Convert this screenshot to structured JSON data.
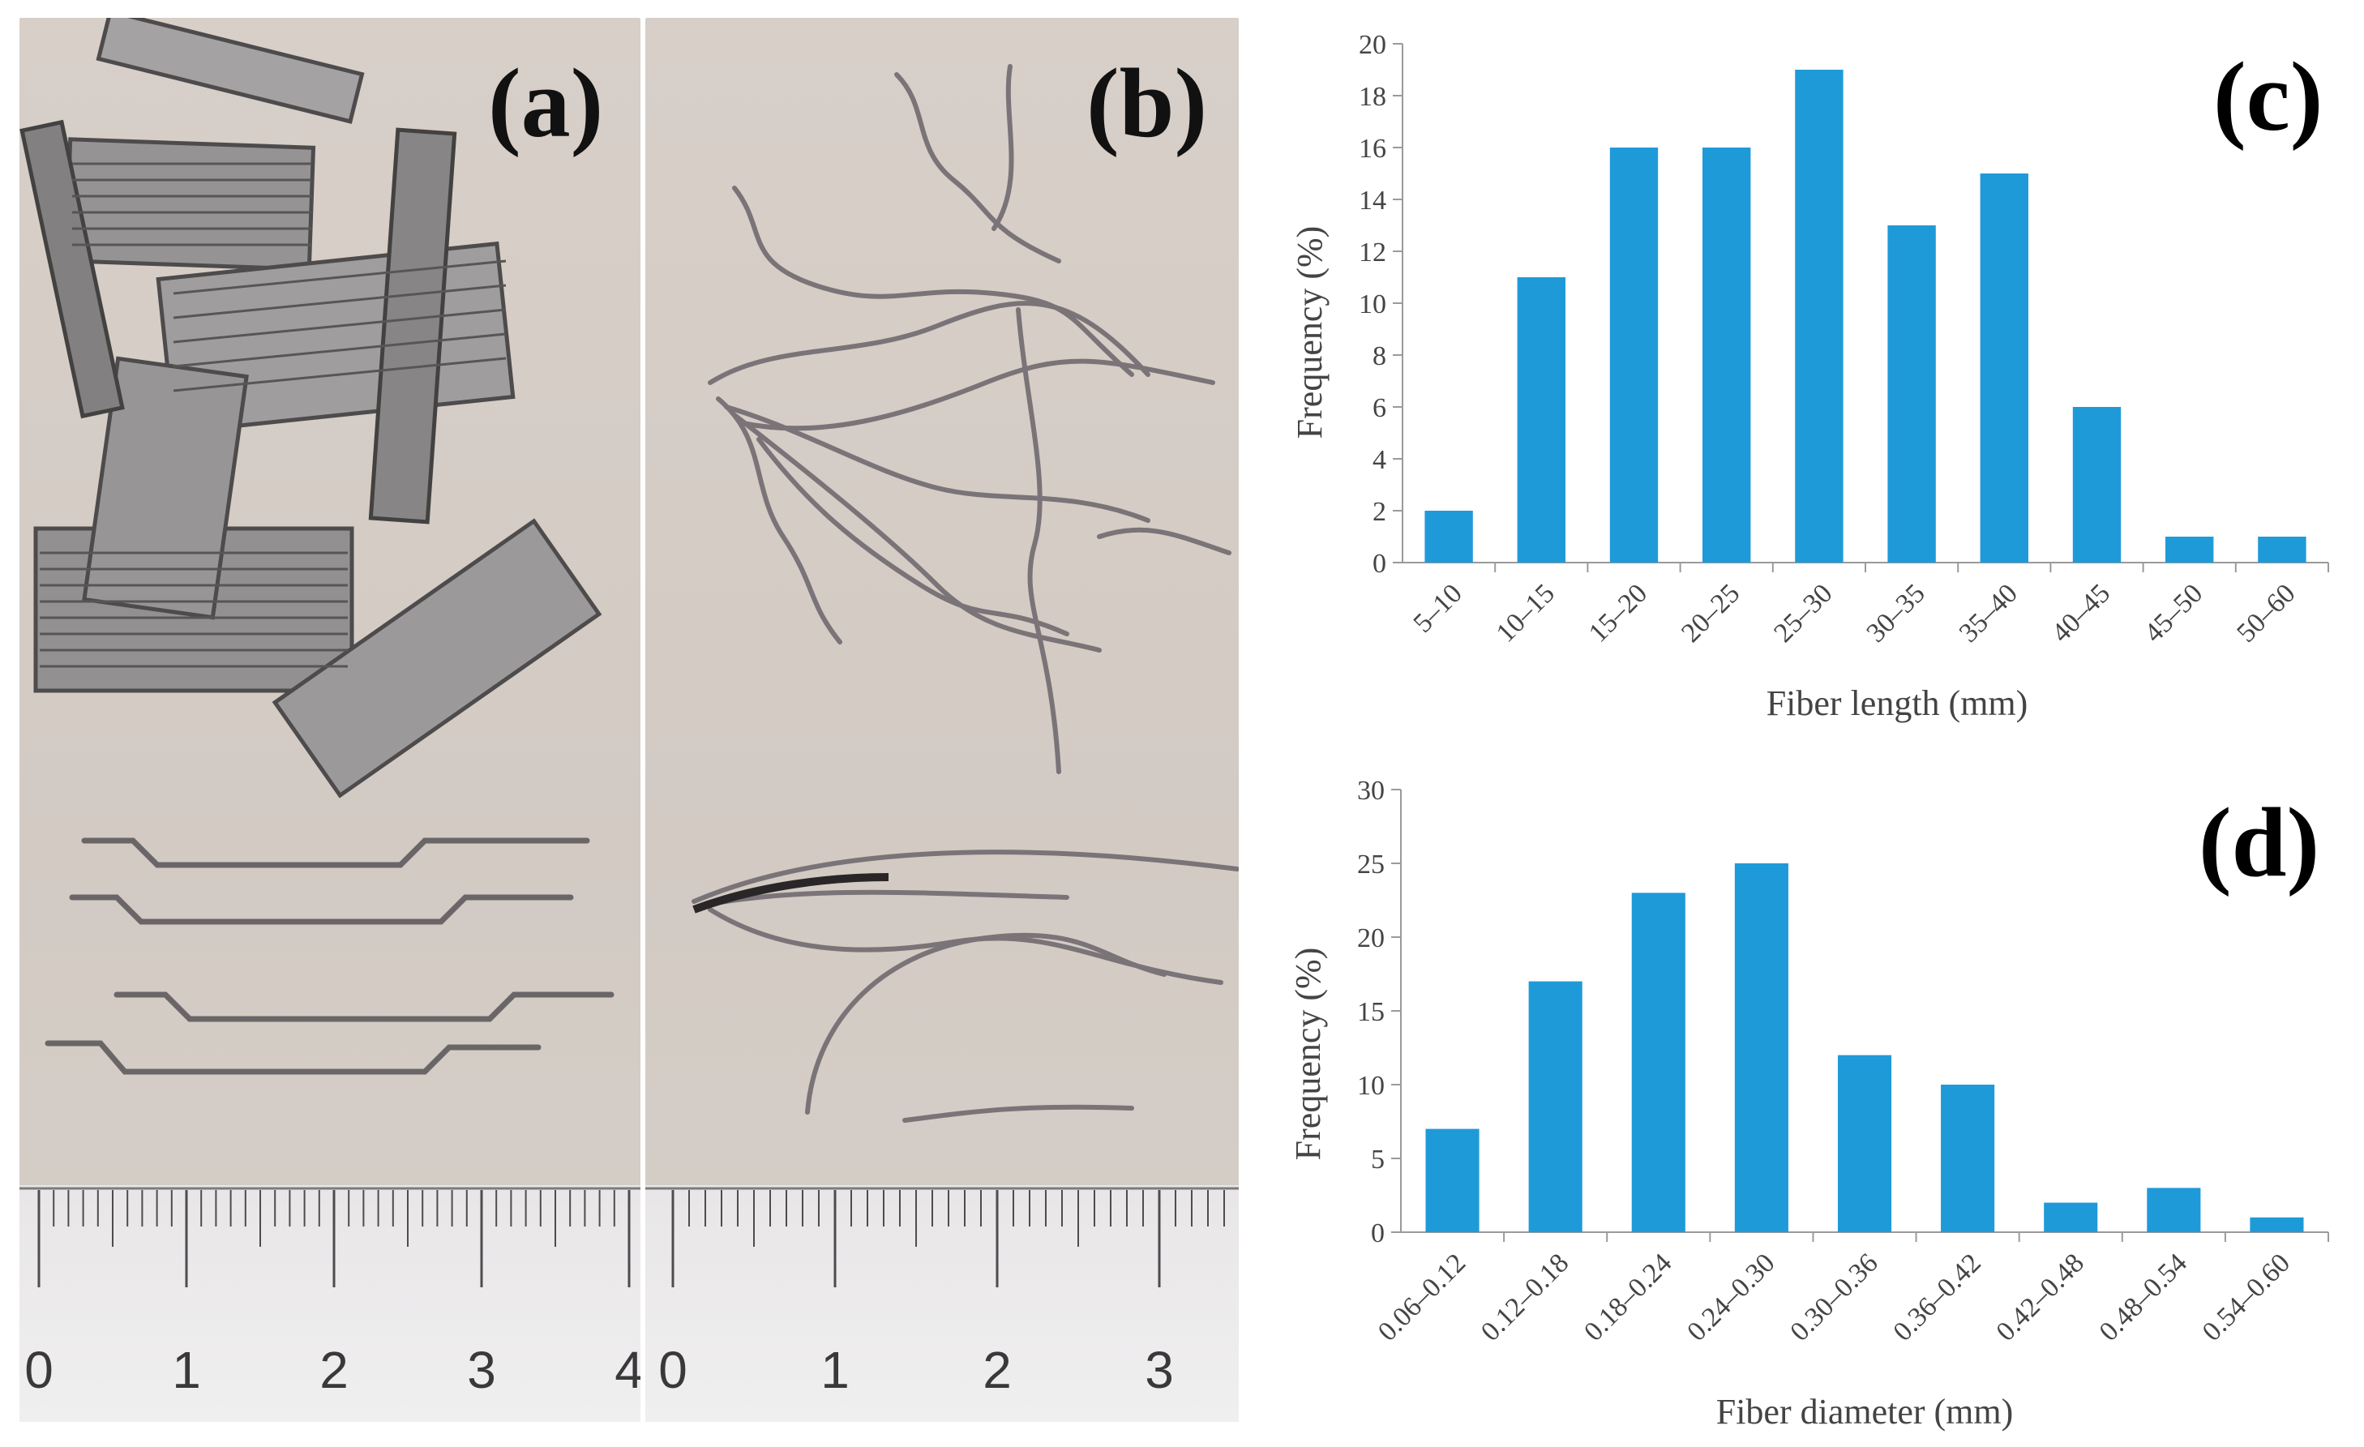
{
  "panels": {
    "a": {
      "label": "(a)",
      "ruler_numbers": [
        "0",
        "1",
        "2",
        "3",
        "4"
      ]
    },
    "b": {
      "label": "(b)",
      "ruler_numbers": [
        "0",
        "1",
        "2",
        "3"
      ]
    }
  },
  "chart_data": [
    {
      "type": "bar",
      "panel_label": "(c)",
      "categories": [
        "5–10",
        "10–15",
        "15–20",
        "20–25",
        "25–30",
        "30–35",
        "35–40",
        "40–45",
        "45–50",
        "50–60"
      ],
      "values": [
        2,
        11,
        16,
        16,
        19,
        13,
        15,
        6,
        1,
        1
      ],
      "xlabel": "Fiber length  (mm)",
      "ylabel": "Frequency (%)",
      "ylim": [
        0,
        20
      ],
      "yticks": [
        0,
        2,
        4,
        6,
        8,
        10,
        12,
        14,
        16,
        18,
        20
      ],
      "bar_color": "#1f9ad8",
      "grid": false
    },
    {
      "type": "bar",
      "panel_label": "(d)",
      "categories": [
        "0.06–0.12",
        "0.12–0.18",
        "0.18–0.24",
        "0.24–0.30",
        "0.30–0.36",
        "0.36–0.42",
        "0.42–0.48",
        "0.48–0.54",
        "0.54–0.60"
      ],
      "values": [
        7,
        17,
        23,
        25,
        12,
        10,
        2,
        3,
        1
      ],
      "xlabel": "Fiber diameter  (mm)",
      "ylabel": "Frequency (%)",
      "ylim": [
        0,
        30
      ],
      "yticks": [
        0,
        5,
        10,
        15,
        20,
        25,
        30
      ],
      "bar_color": "#1f9ad8",
      "grid": false
    }
  ]
}
